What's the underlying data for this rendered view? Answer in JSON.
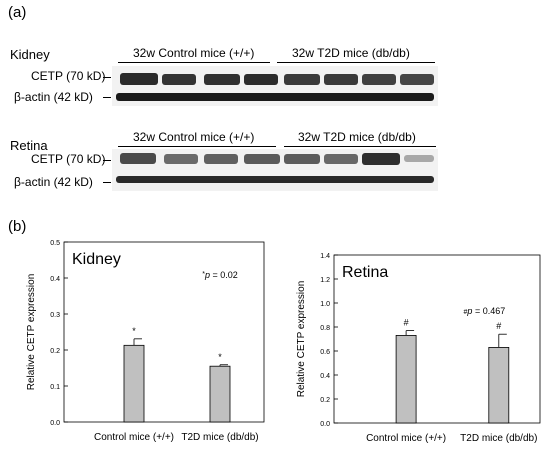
{
  "panel_a": {
    "label": "(a)",
    "blots": [
      {
        "tissue": "Kidney",
        "group_labels": [
          "32w Control mice (+/+)",
          "32w T2D mice (db/db)"
        ],
        "band_labels": [
          "CETP (70 kD)",
          "β-actin (42 kD)"
        ]
      },
      {
        "tissue": "Retina",
        "group_labels": [
          "32w Control mice (+/+)",
          "32w T2D mice (db/db)"
        ],
        "band_labels": [
          "CETP (70 kD)",
          "β-actin (42 kD)"
        ]
      }
    ]
  },
  "panel_b": {
    "label": "(b)"
  },
  "chart_data": [
    {
      "type": "bar",
      "title": "Kidney",
      "ylabel": "Relative CETP expression",
      "xlabel": "",
      "categories": [
        "Control mice (+/+)",
        "T2D mice (db/db)"
      ],
      "values": [
        0.213,
        0.155
      ],
      "errors": [
        0.018,
        0.004
      ],
      "markers": [
        "*",
        "*"
      ],
      "annotation": {
        "symbol": "*",
        "prefix": "p",
        "text": " = 0.02"
      },
      "ylim": [
        0,
        0.5
      ],
      "yticks": [
        "0.0",
        "0.1",
        "0.2",
        "0.3",
        "0.4",
        "0.5"
      ],
      "grid": false,
      "bar_color": "#c0c0c0"
    },
    {
      "type": "bar",
      "title": "Retina",
      "ylabel": "Relative CETP expression",
      "xlabel": "",
      "categories": [
        "Control mice (+/+)",
        "T2D mice (db/db)"
      ],
      "values": [
        0.73,
        0.63
      ],
      "errors": [
        0.04,
        0.11
      ],
      "markers": [
        "#",
        "#"
      ],
      "annotation": {
        "symbol": "#",
        "prefix": "p",
        "text": " = 0.467"
      },
      "ylim": [
        0,
        1.4
      ],
      "yticks": [
        "0.0",
        "0.2",
        "0.4",
        "0.6",
        "0.8",
        "1.0",
        "1.2",
        "1.4"
      ],
      "grid": false,
      "bar_color": "#c0c0c0"
    }
  ]
}
